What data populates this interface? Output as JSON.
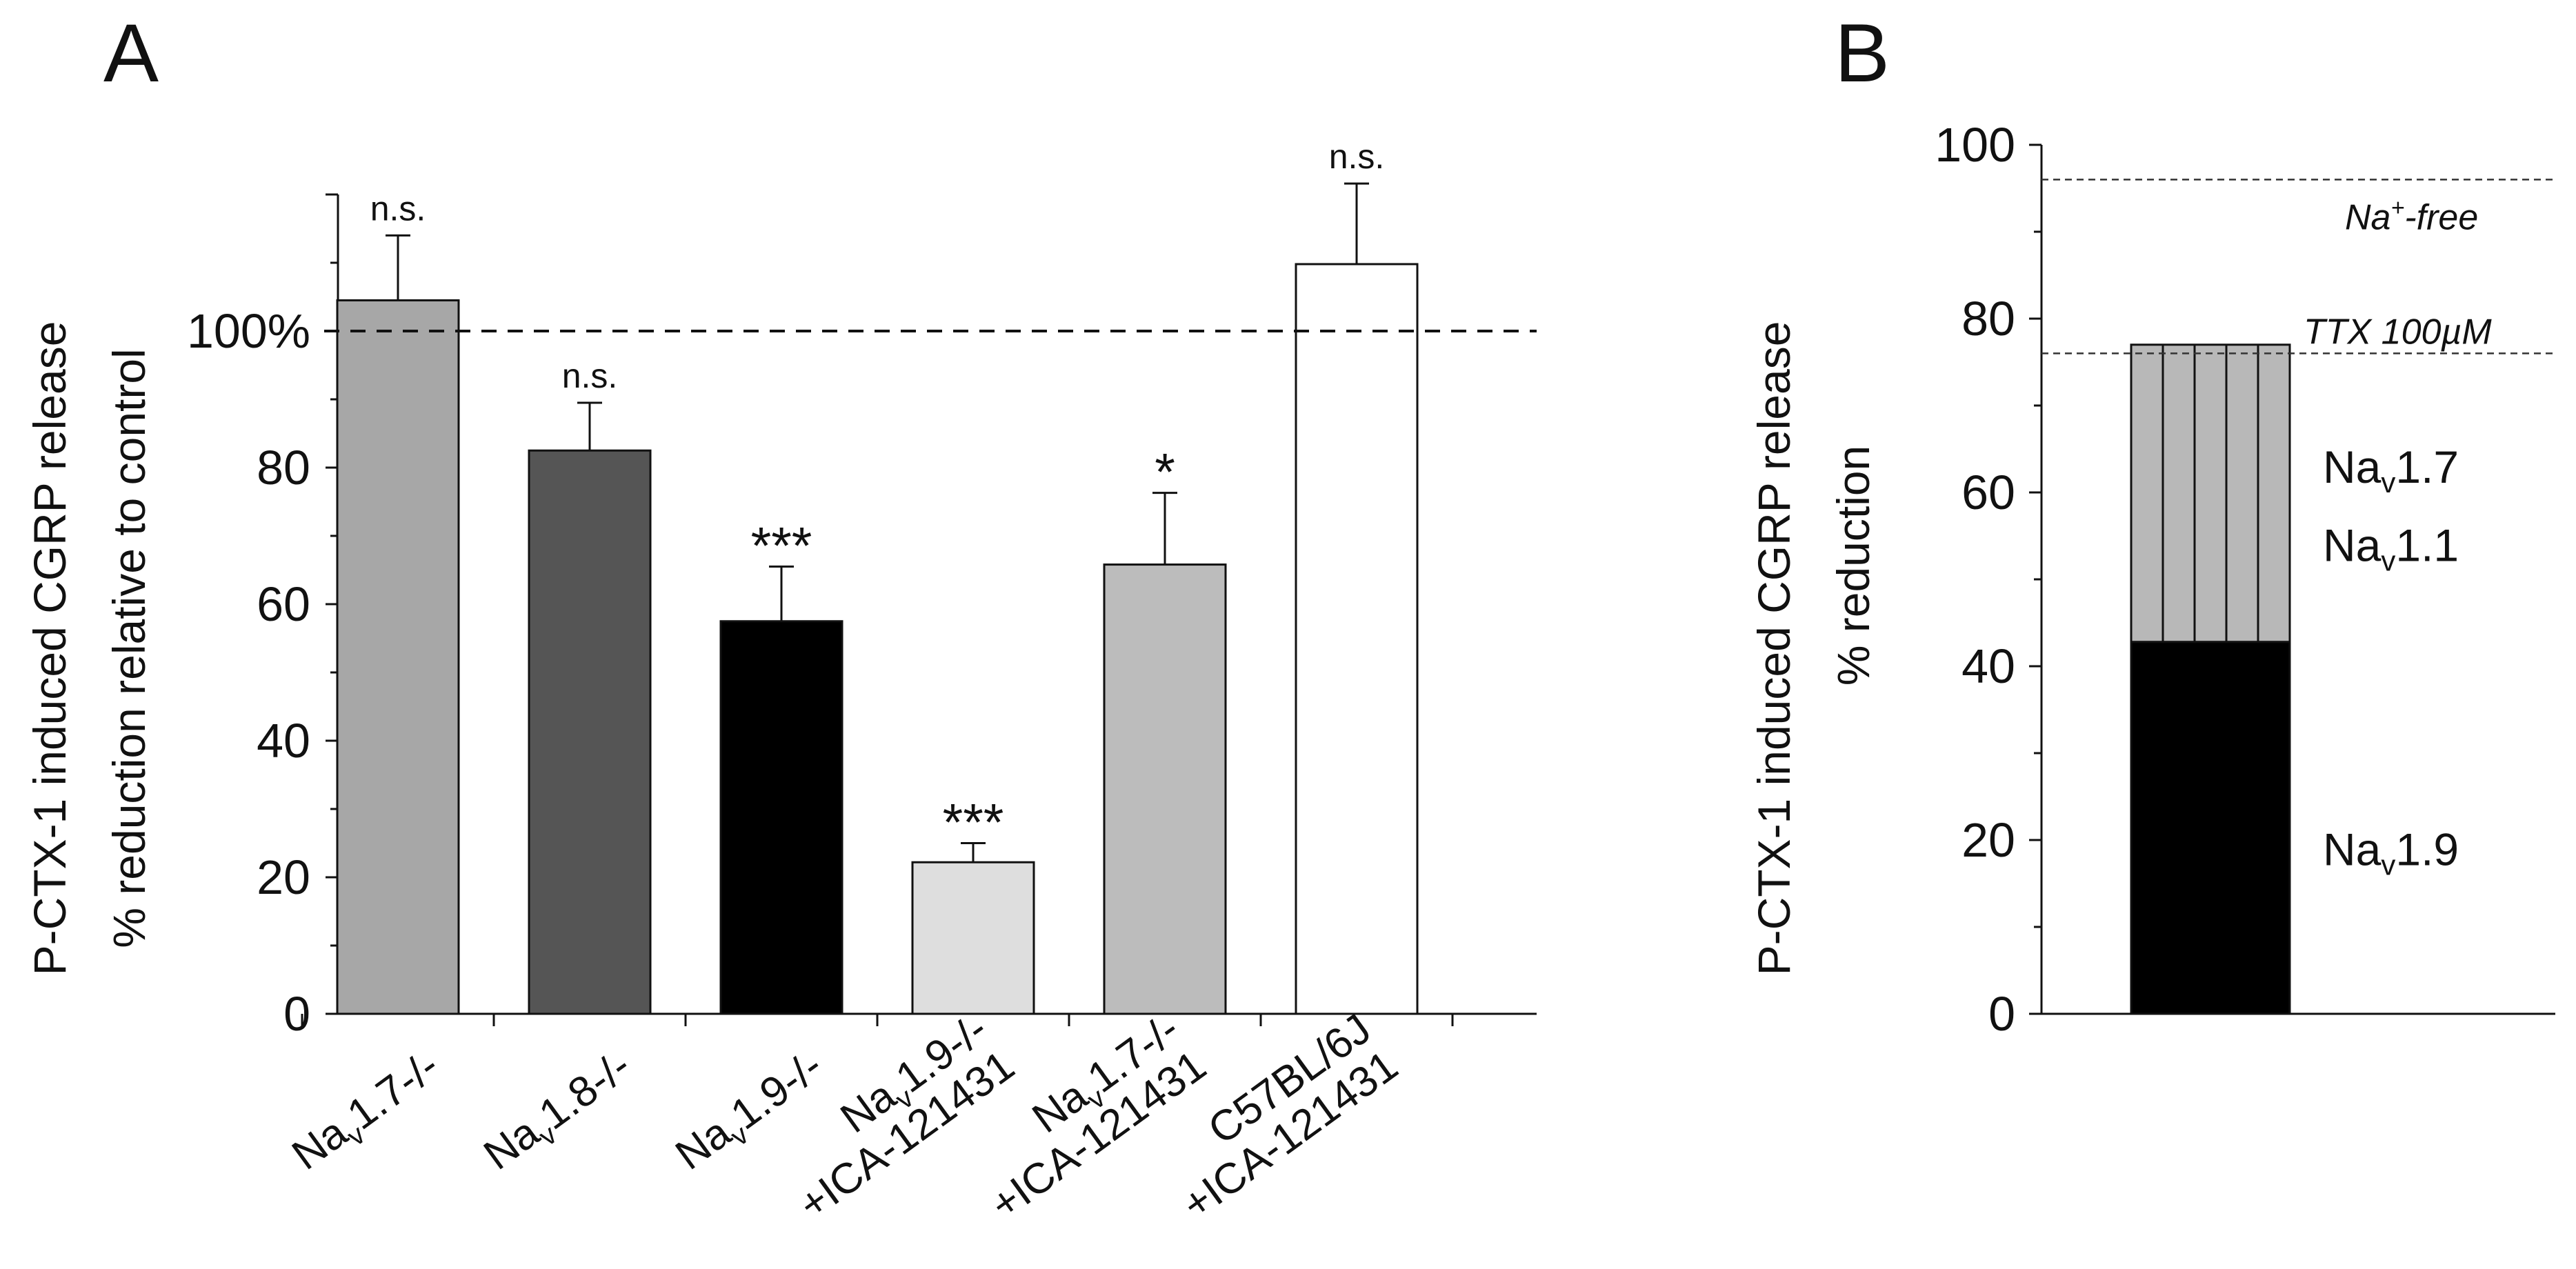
{
  "chart_data": [
    {
      "panel": "A",
      "type": "bar",
      "ylabel_line1": "P-CTX-1 induced CGRP release",
      "ylabel_line2": "% reduction relative to control",
      "ylim": [
        0,
        120
      ],
      "yticks": [
        0,
        20,
        40,
        60,
        80
      ],
      "ytick_labels": [
        "0",
        "20",
        "40",
        "60",
        "80"
      ],
      "reference": {
        "value": 100,
        "label": "100%",
        "style": "dashed"
      },
      "categories": [
        {
          "line1": "Na",
          "sub": "v",
          "rest": "1.7-/-",
          "line2": ""
        },
        {
          "line1": "Na",
          "sub": "v",
          "rest": "1.8-/-",
          "line2": ""
        },
        {
          "line1": "Na",
          "sub": "v",
          "rest": "1.9-/-",
          "line2": ""
        },
        {
          "line1": "Na",
          "sub": "v",
          "rest": "1.9-/-",
          "line2": "+ICA-121431"
        },
        {
          "line1": "Na",
          "sub": "v",
          "rest": "1.7-/-",
          "line2": "+ICA-121431"
        },
        {
          "line1": "C57BL/6J",
          "sub": "",
          "rest": "",
          "line2": "+ICA-121431"
        }
      ],
      "values": [
        104.5,
        82.5,
        57.5,
        22.2,
        65.8,
        109.8
      ],
      "errors": [
        9.5,
        7.0,
        8.0,
        2.8,
        10.5,
        11.8
      ],
      "significance": [
        "n.s.",
        "n.s.",
        "***",
        "***",
        "*",
        "n.s."
      ],
      "colors": [
        "#a7a7a7",
        "#555555",
        "#000000",
        "#dedede",
        "#bcbcbc",
        "#ffffff"
      ]
    },
    {
      "panel": "B",
      "type": "bar",
      "subtype": "stacked",
      "ylabel_line1": "P-CTX-1 induced CGRP release",
      "ylabel_line2": "% reduction",
      "ylim": [
        0,
        100
      ],
      "yticks": [
        0,
        20,
        40,
        60,
        80,
        100
      ],
      "ytick_labels": [
        "0",
        "20",
        "40",
        "60",
        "80",
        "100"
      ],
      "segments": [
        {
          "from": 0,
          "to": 42.8,
          "color": "#000000"
        },
        {
          "from": 42.8,
          "to": 77.0,
          "color": "#b8b8b8"
        }
      ],
      "segment_labels": [
        {
          "base": "Na",
          "sub": "v",
          "rest": "1.7",
          "y": 63
        },
        {
          "base": "Na",
          "sub": "v",
          "rest": "1.1",
          "y": 54
        },
        {
          "base": "Na",
          "sub": "v",
          "rest": "1.9",
          "y": 19
        }
      ],
      "reference_lines": [
        {
          "value": 96,
          "label_pre": "Na",
          "label_sup": "+",
          "label_post": "-free"
        },
        {
          "value": 76,
          "label_pre": "TTX 100µM",
          "label_sup": "",
          "label_post": ""
        }
      ]
    }
  ],
  "panel_labels": {
    "a": "A",
    "b": "B"
  }
}
